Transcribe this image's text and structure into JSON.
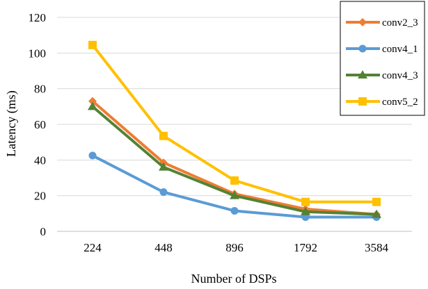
{
  "chart_data": {
    "type": "line",
    "title": "",
    "xlabel": "Number of DSPs",
    "ylabel": "Latency (ms)",
    "categories": [
      "224",
      "448",
      "896",
      "1792",
      "3584"
    ],
    "ylim": [
      0,
      120
    ],
    "yticks": [
      0,
      20,
      40,
      60,
      80,
      100,
      120
    ],
    "grid": true,
    "legend_position": "top-right",
    "series": [
      {
        "name": "conv2_3",
        "values": [
          73,
          38.5,
          21,
          12.5,
          9.5
        ],
        "color": "#ED7D31",
        "marker": "diamond"
      },
      {
        "name": "conv4_1",
        "values": [
          42.5,
          22,
          11.5,
          8,
          8
        ],
        "color": "#5B9BD5",
        "marker": "circle"
      },
      {
        "name": "conv4_3",
        "values": [
          70,
          36,
          20,
          11,
          9.5
        ],
        "color": "#548235",
        "marker": "triangle"
      },
      {
        "name": "conv5_2",
        "values": [
          104.5,
          53.5,
          28.5,
          16.5,
          16.5
        ],
        "color": "#FFC000",
        "marker": "square"
      }
    ]
  }
}
